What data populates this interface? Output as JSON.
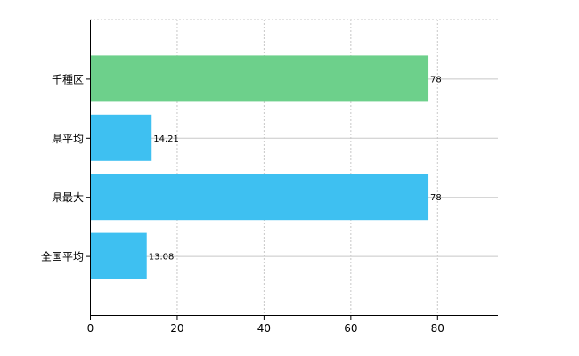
{
  "chart_data": {
    "type": "bar",
    "orientation": "horizontal",
    "categories": [
      "千種区",
      "県平均",
      "県最大",
      "全国平均"
    ],
    "values": [
      78,
      14.21,
      78,
      13.08
    ],
    "value_labels": [
      "78",
      "14.21",
      "78",
      "13.08"
    ],
    "bar_colors": [
      "#6dd08b",
      "#3ec0f1",
      "#3ec0f1",
      "#3ec0f1"
    ],
    "xlim": [
      0,
      94
    ],
    "xticks": [
      0,
      20,
      40,
      60,
      80
    ],
    "xtick_labels": [
      "0",
      "20",
      "40",
      "60",
      "80"
    ],
    "grid": true,
    "title": "",
    "xlabel": "",
    "ylabel": ""
  }
}
